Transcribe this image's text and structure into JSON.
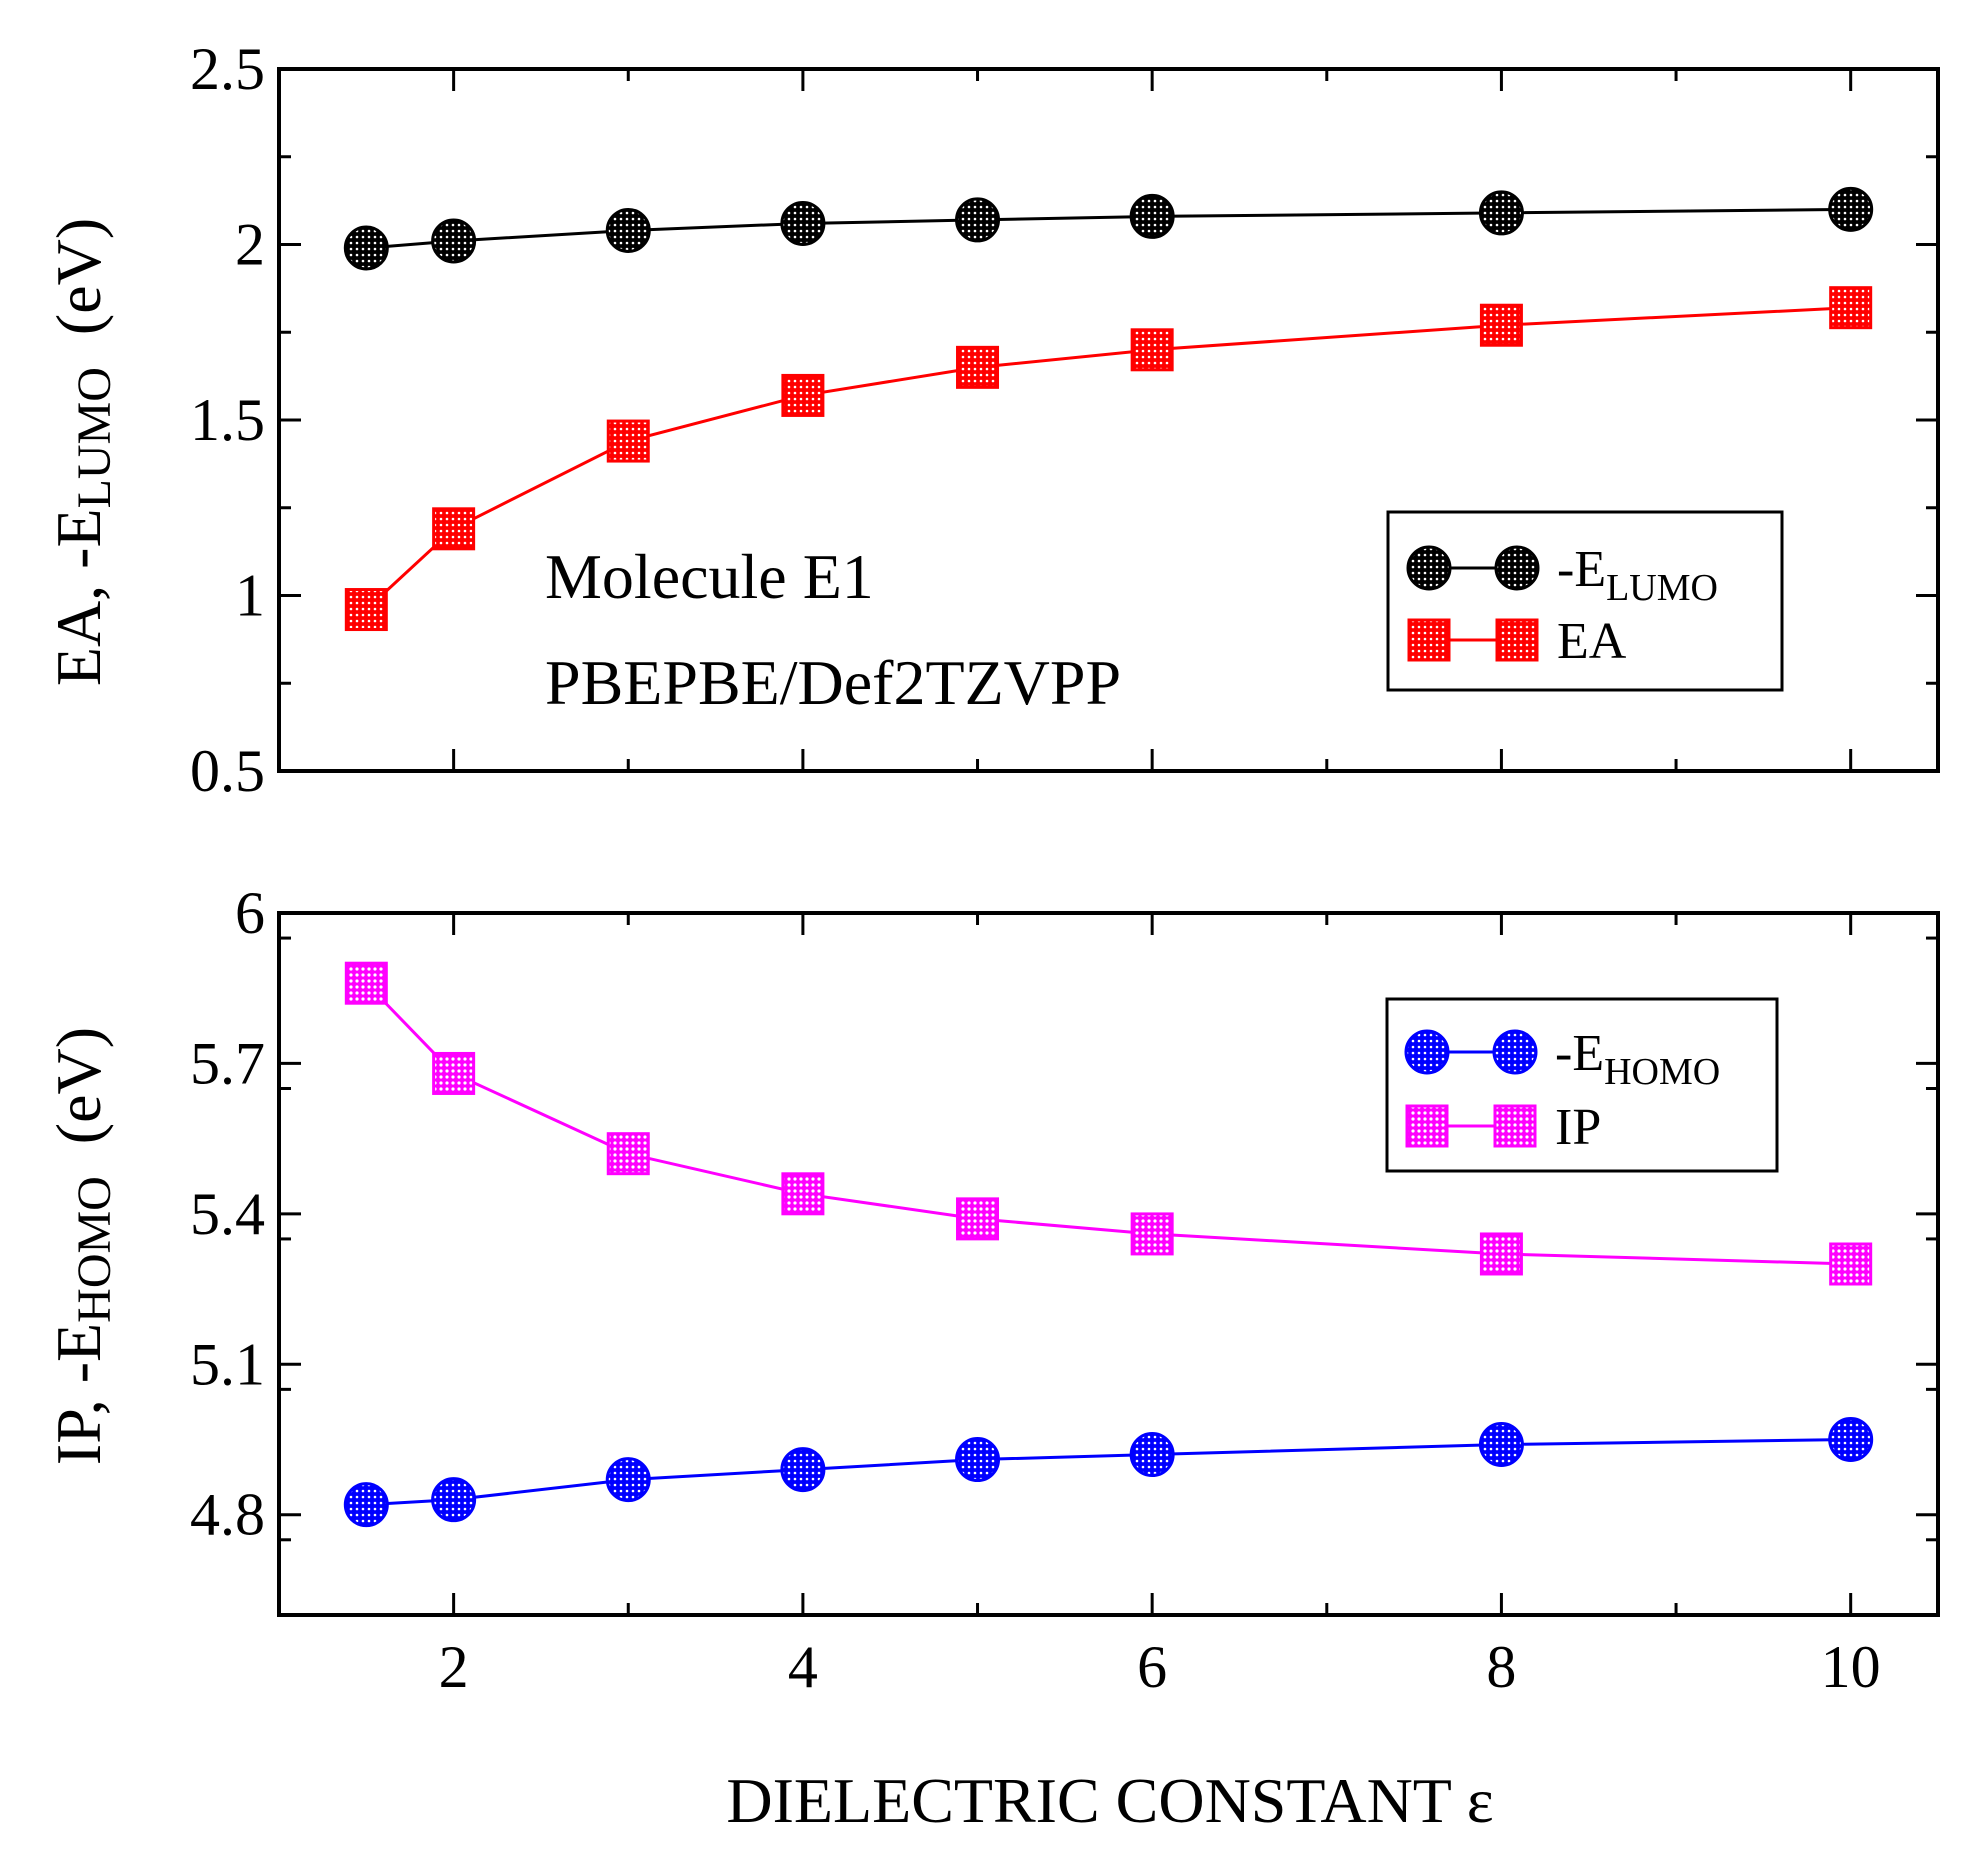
{
  "chart_data": [
    {
      "type": "line",
      "panel": "top",
      "x": [
        1.5,
        2,
        3,
        4,
        5,
        6,
        8,
        10
      ],
      "xlim": [
        1,
        10.5
      ],
      "xticks": [
        2,
        4,
        6,
        8,
        10
      ],
      "xtick_labels": [
        "",
        "",
        "",
        "",
        ""
      ],
      "ylim": [
        0.5,
        2.5
      ],
      "yticks": [
        0.5,
        1,
        1.5,
        2,
        2.5
      ],
      "ytick_labels": [
        "0.5",
        "1",
        "1.5",
        "2",
        "2.5"
      ],
      "ylabel": {
        "prefix": "EA, -E",
        "sub": "LUMO",
        "suffix": "  (eV)"
      },
      "annotations": [
        "Molecule E1",
        "PBEPBE/Def2TZVPP"
      ],
      "legend_position": "center-right",
      "series": [
        {
          "name": "-E",
          "name_sub": "LUMO",
          "marker": "circle",
          "color": "#000000",
          "values": [
            1.99,
            2.01,
            2.04,
            2.06,
            2.07,
            2.08,
            2.09,
            2.1
          ]
        },
        {
          "name": "EA",
          "name_sub": "",
          "marker": "square",
          "color": "#ff0000",
          "values": [
            0.96,
            1.19,
            1.44,
            1.57,
            1.65,
            1.7,
            1.77,
            1.82
          ]
        }
      ]
    },
    {
      "type": "line",
      "panel": "bottom",
      "x": [
        1.5,
        2,
        3,
        4,
        5,
        6,
        8,
        10
      ],
      "xlim": [
        1,
        10.5
      ],
      "xticks": [
        2,
        4,
        6,
        8,
        10
      ],
      "xtick_labels": [
        "2",
        "4",
        "6",
        "8",
        "10"
      ],
      "xlabel": "DIELECTRIC CONSTANT ε",
      "ylim": [
        4.6,
        6.0
      ],
      "yticks": [
        4.8,
        5.1,
        5.4,
        5.7,
        6.0
      ],
      "ytick_labels": [
        "4.8",
        "5.1",
        "5.4",
        "5.7",
        "6"
      ],
      "ylabel": {
        "prefix": "IP, -E",
        "sub": "HOMO",
        "suffix": "  (eV)"
      },
      "legend_position": "upper-right",
      "series": [
        {
          "name": "-E",
          "name_sub": "HOMO",
          "marker": "circle",
          "color": "#0000ff",
          "values": [
            4.82,
            4.83,
            4.87,
            4.89,
            4.91,
            4.92,
            4.94,
            4.95
          ]
        },
        {
          "name": "IP",
          "name_sub": "",
          "marker": "square",
          "color": "#ff00ff",
          "values": [
            5.86,
            5.68,
            5.52,
            5.44,
            5.39,
            5.36,
            5.32,
            5.3
          ]
        }
      ]
    }
  ]
}
